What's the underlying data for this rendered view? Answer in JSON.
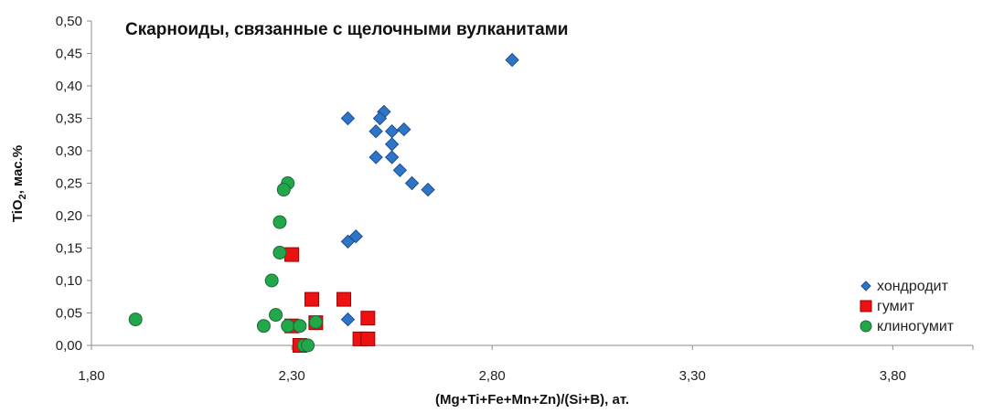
{
  "chart_data": {
    "type": "scatter",
    "title": "Скарноиды, связанные с щелочными вулканитами",
    "xlabel": "(Mg+Ti+Fe+Mn+Zn)/(Si+B),  ат.",
    "ylabel": "TiO2, мас.%",
    "ylabel_main": "TiO",
    "ylabel_sub": "2",
    "ylabel_rest": ", мас.%",
    "xlim": [
      1.8,
      4.0
    ],
    "ylim": [
      0,
      0.5
    ],
    "x_ticks": [
      1.8,
      2.3,
      2.8,
      3.3,
      3.8
    ],
    "x_tick_labels": [
      "1,80",
      "2,30",
      "2,80",
      "3,30",
      "3,80"
    ],
    "y_ticks": [
      0,
      0.05,
      0.1,
      0.15,
      0.2,
      0.25,
      0.3,
      0.35,
      0.4,
      0.45,
      0.5
    ],
    "y_tick_labels": [
      "0,00",
      "0,05",
      "0,10",
      "0,15",
      "0,20",
      "0,25",
      "0,30",
      "0,35",
      "0,40",
      "0,45",
      "0,50"
    ],
    "grid": false,
    "legend_position": "bottom-right",
    "series": [
      {
        "name": "хондродит",
        "marker": "diamond",
        "color": "#2E75C8",
        "stroke": "#1F4E8C",
        "points": [
          [
            2.85,
            0.44
          ],
          [
            2.53,
            0.36
          ],
          [
            2.52,
            0.35
          ],
          [
            2.44,
            0.35
          ],
          [
            2.51,
            0.33
          ],
          [
            2.55,
            0.33
          ],
          [
            2.58,
            0.333
          ],
          [
            2.55,
            0.31
          ],
          [
            2.51,
            0.29
          ],
          [
            2.55,
            0.29
          ],
          [
            2.57,
            0.27
          ],
          [
            2.6,
            0.25
          ],
          [
            2.64,
            0.24
          ],
          [
            2.46,
            0.168
          ],
          [
            2.44,
            0.16
          ],
          [
            2.44,
            0.04
          ]
        ]
      },
      {
        "name": "гумит",
        "marker": "square",
        "color": "#EE1111",
        "stroke": "#A00000",
        "points": [
          [
            2.3,
            0.14
          ],
          [
            2.35,
            0.071
          ],
          [
            2.43,
            0.071
          ],
          [
            2.49,
            0.042
          ],
          [
            2.3,
            0.03
          ],
          [
            2.36,
            0.035
          ],
          [
            2.47,
            0.01
          ],
          [
            2.49,
            0.01
          ],
          [
            2.32,
            0.0
          ]
        ]
      },
      {
        "name": "клиногумит",
        "marker": "circle",
        "color": "#22A84A",
        "stroke": "#1A6B33",
        "points": [
          [
            1.91,
            0.04
          ],
          [
            2.29,
            0.25
          ],
          [
            2.28,
            0.24
          ],
          [
            2.27,
            0.19
          ],
          [
            2.27,
            0.143
          ],
          [
            2.25,
            0.1
          ],
          [
            2.26,
            0.047
          ],
          [
            2.23,
            0.03
          ],
          [
            2.29,
            0.03
          ],
          [
            2.32,
            0.03
          ],
          [
            2.36,
            0.036
          ],
          [
            2.33,
            0.0
          ],
          [
            2.34,
            0.0
          ]
        ]
      }
    ]
  }
}
